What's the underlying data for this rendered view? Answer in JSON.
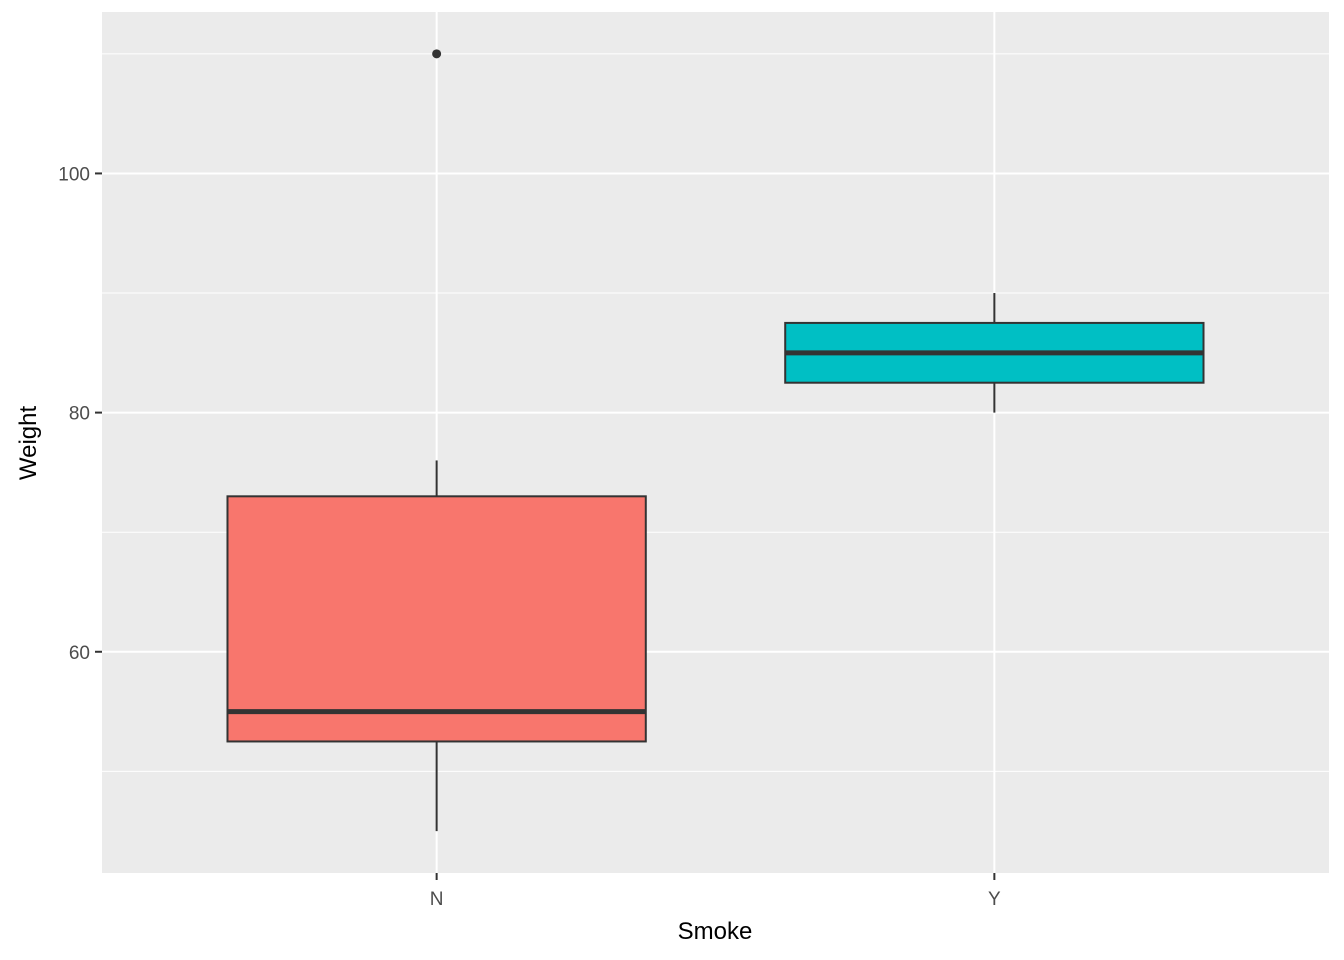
{
  "chart_data": {
    "type": "boxplot",
    "xlabel": "Smoke",
    "ylabel": "Weight",
    "categories": [
      "N",
      "Y"
    ],
    "ylim": [
      41.5,
      113.5
    ],
    "y_ticks": [
      60,
      80,
      100
    ],
    "y_ticks_labels": [
      "60",
      "80",
      "100"
    ],
    "minor_breaks": [
      50,
      70,
      90,
      110
    ],
    "grid": true,
    "legend": "none",
    "panel_background": "#EBEBEB",
    "grid_color": "#FFFFFF",
    "box_outline_color": "#333333",
    "boxes": [
      {
        "category": "N",
        "fill": "#F8766D",
        "whisker_low": 45,
        "q1": 52.5,
        "median": 55,
        "q3": 73,
        "whisker_high": 76,
        "outliers": [
          110
        ]
      },
      {
        "category": "Y",
        "fill": "#00BFC4",
        "whisker_low": 80,
        "q1": 82.5,
        "median": 85,
        "q3": 87.5,
        "whisker_high": 90,
        "outliers": []
      }
    ]
  }
}
